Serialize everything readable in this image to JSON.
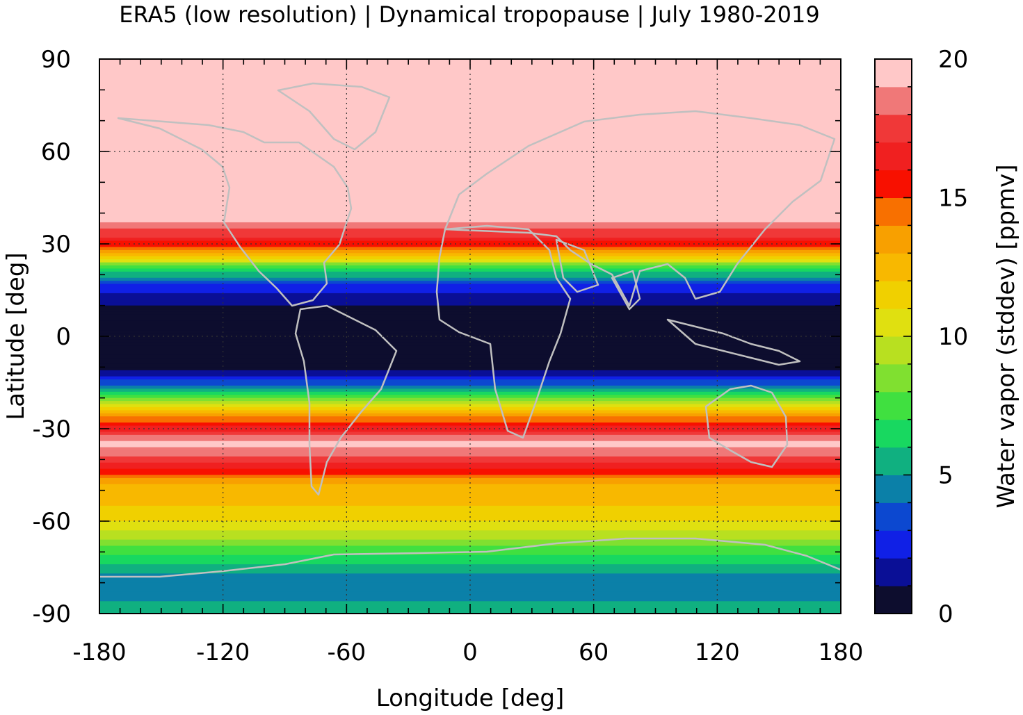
{
  "chart_data": {
    "type": "heatmap",
    "title": "ERA5 (low resolution) | Dynamical tropopause | July 1980-2019",
    "xlabel": "Longitude [deg]",
    "ylabel": "Latitude [deg]",
    "xlim": [
      -180,
      180
    ],
    "ylim": [
      -90,
      90
    ],
    "x_ticks": [
      "-180",
      "-120",
      "-60",
      "0",
      "60",
      "120",
      "180"
    ],
    "y_ticks": [
      "90",
      "60",
      "30",
      "0",
      "-30",
      "-60",
      "-90"
    ],
    "grid": true,
    "colorbar": {
      "label": "Water vapor (stddev) [ppmv]",
      "range": [
        0,
        20
      ],
      "tick_labels": [
        "20",
        "15",
        "10",
        "5",
        "0"
      ],
      "levels": [
        {
          "from": 0,
          "to": 1,
          "color": "#0d0d2e"
        },
        {
          "from": 1,
          "to": 2,
          "color": "#0a0f96"
        },
        {
          "from": 2,
          "to": 3,
          "color": "#1020e6"
        },
        {
          "from": 3,
          "to": 4,
          "color": "#0c48d0"
        },
        {
          "from": 4,
          "to": 5,
          "color": "#0b80a8"
        },
        {
          "from": 5,
          "to": 6,
          "color": "#10b080"
        },
        {
          "from": 6,
          "to": 7,
          "color": "#18d860"
        },
        {
          "from": 7,
          "to": 8,
          "color": "#40e040"
        },
        {
          "from": 8,
          "to": 9,
          "color": "#80e030"
        },
        {
          "from": 9,
          "to": 10,
          "color": "#b8e020"
        },
        {
          "from": 10,
          "to": 11,
          "color": "#e0e010"
        },
        {
          "from": 11,
          "to": 12,
          "color": "#f0d000"
        },
        {
          "from": 12,
          "to": 13,
          "color": "#f8b800"
        },
        {
          "from": 13,
          "to": 14,
          "color": "#f8a000"
        },
        {
          "from": 14,
          "to": 15,
          "color": "#f87000"
        },
        {
          "from": 15,
          "to": 16,
          "color": "#f81000"
        },
        {
          "from": 16,
          "to": 17,
          "color": "#f02020"
        },
        {
          "from": 17,
          "to": 18,
          "color": "#f03838"
        },
        {
          "from": 18,
          "to": 19,
          "color": "#f07878"
        },
        {
          "from": 19,
          "to": 20,
          "color": "#ffc8c8"
        }
      ]
    },
    "zonal_profile": [
      {
        "lat": 90,
        "value": 20
      },
      {
        "lat": 40,
        "value": 20
      },
      {
        "lat": 32,
        "value": 17
      },
      {
        "lat": 27,
        "value": 13
      },
      {
        "lat": 22,
        "value": 7
      },
      {
        "lat": 17,
        "value": 3
      },
      {
        "lat": 13,
        "value": 1.5
      },
      {
        "lat": 8,
        "value": 0.5
      },
      {
        "lat": -10,
        "value": 0.5
      },
      {
        "lat": -13,
        "value": 2
      },
      {
        "lat": -17,
        "value": 5
      },
      {
        "lat": -21,
        "value": 9
      },
      {
        "lat": -25,
        "value": 13
      },
      {
        "lat": -29,
        "value": 16
      },
      {
        "lat": -35,
        "value": 19.5
      },
      {
        "lat": -42,
        "value": 16.5
      },
      {
        "lat": -48,
        "value": 13
      },
      {
        "lat": -58,
        "value": 11.5
      },
      {
        "lat": -66,
        "value": 9
      },
      {
        "lat": -72,
        "value": 6.5
      },
      {
        "lat": -78,
        "value": 4.5
      },
      {
        "lat": -86,
        "value": 5
      },
      {
        "lat": -90,
        "value": 6
      }
    ]
  }
}
